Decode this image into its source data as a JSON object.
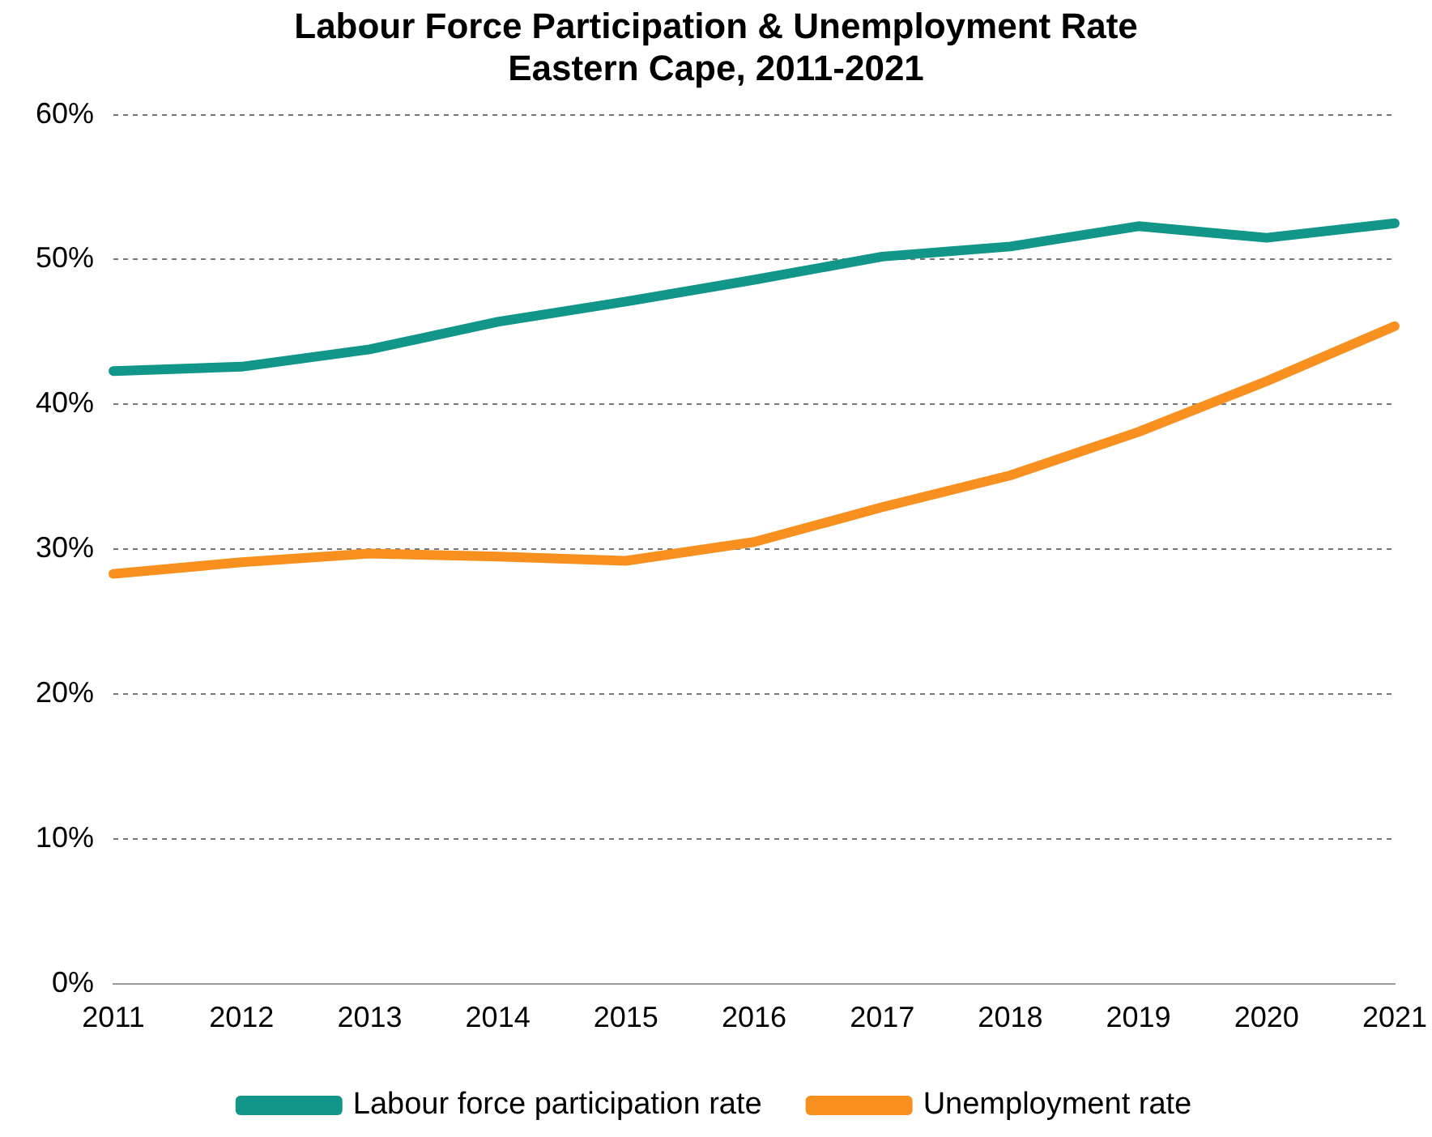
{
  "chart_data": {
    "type": "line",
    "title": "Labour Force Participation & Unemployment Rate\nEastern Cape, 2011-2021",
    "categories": [
      "2011",
      "2012",
      "2013",
      "2014",
      "2015",
      "2016",
      "2017",
      "2018",
      "2019",
      "2020",
      "2021"
    ],
    "series": [
      {
        "name": "Labour force participation rate",
        "color": "#12968a",
        "values": [
          42.3,
          42.6,
          43.8,
          45.7,
          47.1,
          48.6,
          50.2,
          50.9,
          52.3,
          51.5,
          52.5
        ]
      },
      {
        "name": "Unemployment rate",
        "color": "#f7901e",
        "values": [
          28.3,
          29.1,
          29.7,
          29.5,
          29.2,
          30.5,
          32.9,
          35.1,
          38.1,
          41.6,
          45.4
        ]
      }
    ],
    "ylim": [
      0,
      60
    ],
    "yticks": [
      {
        "value": 0,
        "label": "0%"
      },
      {
        "value": 10,
        "label": "10%"
      },
      {
        "value": 20,
        "label": "20%"
      },
      {
        "value": 30,
        "label": "30%"
      },
      {
        "value": 40,
        "label": "40%"
      },
      {
        "value": 50,
        "label": "50%"
      },
      {
        "value": 60,
        "label": "60%"
      }
    ],
    "grid": "y",
    "legend": "bottom",
    "marker": "none",
    "line_style": "solid"
  }
}
